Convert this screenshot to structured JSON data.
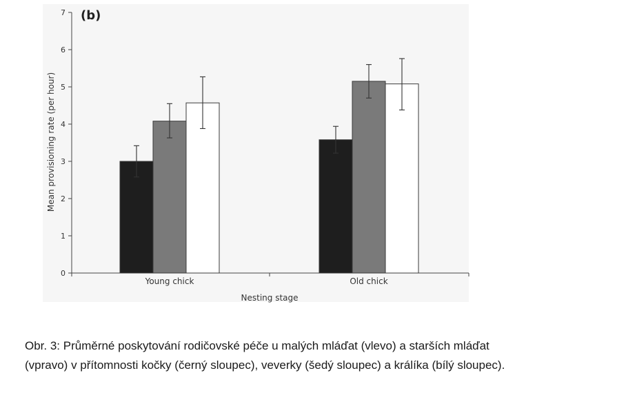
{
  "chart_data": {
    "type": "bar",
    "panel_label": "(b)",
    "categories": [
      "Young chick",
      "Old chick"
    ],
    "series": [
      {
        "color": "#1e1e1e",
        "values": [
          3.0,
          3.58
        ],
        "error_low": [
          2.58,
          3.22
        ],
        "error_high": [
          3.42,
          3.94
        ]
      },
      {
        "color": "#7a7a7a",
        "values": [
          4.08,
          5.15
        ],
        "error_low": [
          3.63,
          4.7
        ],
        "error_high": [
          4.55,
          5.6
        ]
      },
      {
        "color": "#ffffff",
        "values": [
          4.57,
          5.08
        ],
        "error_low": [
          3.88,
          4.38
        ],
        "error_high": [
          5.27,
          5.76
        ]
      }
    ],
    "xlabel": "Nesting stage",
    "ylabel": "Mean provisioning rate (per hour)",
    "ylim": [
      0,
      7
    ],
    "yticks": [
      "0",
      "1",
      "2",
      "3",
      "4",
      "5",
      "6",
      "7"
    ],
    "grid": false,
    "legend": "none"
  },
  "caption": {
    "line1": "Obr. 3: Průměrné poskytování rodičovské péče u malých mláďat (vlevo) a starších mláďat",
    "line2": "(vpravo) v přítomnosti kočky (černý sloupec), veverky (šedý sloupec) a králíka (bílý sloupec)."
  }
}
